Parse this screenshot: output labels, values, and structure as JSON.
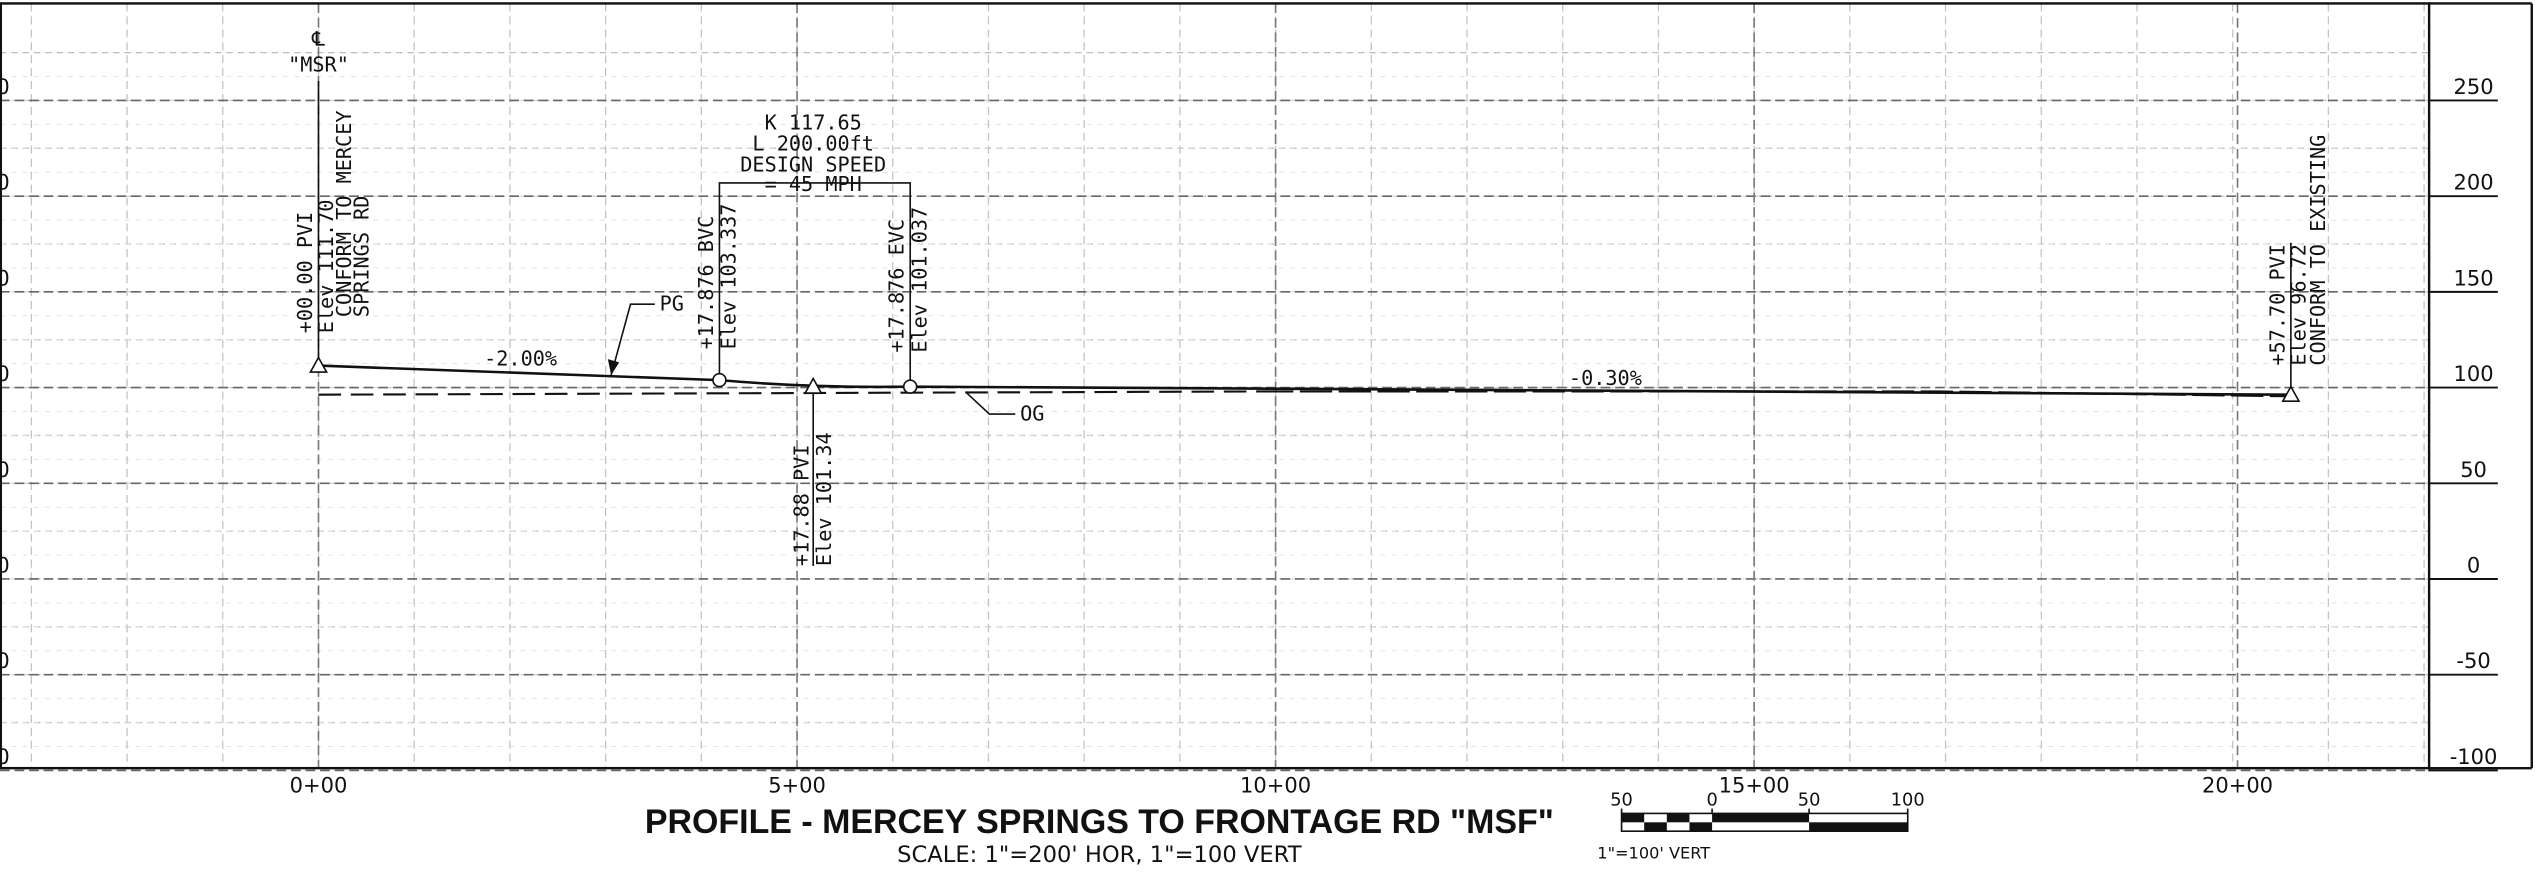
{
  "grid": {
    "elevation_ticks": [
      "250",
      "200",
      "150",
      "100",
      "50",
      "0",
      "-50",
      "-100"
    ],
    "station_ticks": [
      "0+00",
      "5+00",
      "10+00",
      "15+00",
      "20+00"
    ]
  },
  "centerline": {
    "symbol": "℄",
    "name": "\"MSR\""
  },
  "begin_pvi": {
    "station": "+00.00 PVI",
    "elev": "Elev 111.70",
    "note1": "CONFORM TO MERCEY",
    "note2": "SPRINGS RD"
  },
  "curve": {
    "k": "K 117.65",
    "l": "L 200.00ft",
    "speed1": "DESIGN SPEED",
    "speed2": "= 45 MPH"
  },
  "bvc": {
    "station": "+17.876 BVC",
    "elev": "Elev 103.337"
  },
  "evc": {
    "station": "+17.876 EVC",
    "elev": "Elev 101.037"
  },
  "mid_pvi": {
    "station": "+17.88 PVI",
    "elev": "Elev 101.34"
  },
  "end_pvi": {
    "station": "+57.70 PVI",
    "elev": "Elev 96.72",
    "note": "CONFORM TO EXISTING"
  },
  "grades": {
    "g1": "-2.00%",
    "g2": "-0.30%"
  },
  "leaders": {
    "pg": "PG",
    "og": "OG"
  },
  "title": "PROFILE - MERCEY SPRINGS TO FRONTAGE RD \"MSF\"",
  "subtitle": "SCALE: 1\"=200' HOR, 1\"=100 VERT",
  "scale_bar": {
    "labels": [
      "50",
      "0",
      "50",
      "100"
    ],
    "caption": "1\"=100' VERT"
  }
}
